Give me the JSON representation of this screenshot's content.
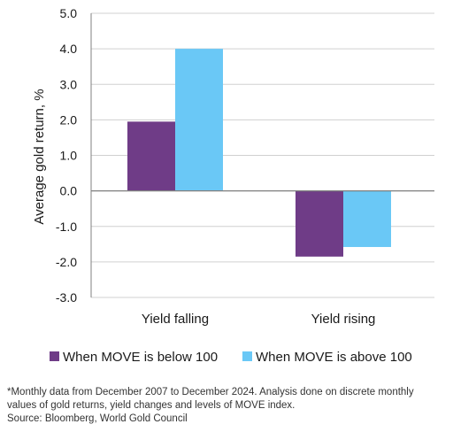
{
  "chart_data": {
    "type": "bar",
    "title": "",
    "xlabel": "",
    "ylabel": "Average gold return, %",
    "ylim": [
      -3.0,
      5.0
    ],
    "yticks": [
      "5.0",
      "4.0",
      "3.0",
      "2.0",
      "1.0",
      "0.0",
      "-1.0",
      "-2.0",
      "-3.0"
    ],
    "categories": [
      "Yield falling",
      "Yield rising"
    ],
    "series": [
      {
        "name": "When MOVE is below 100",
        "values": [
          1.95,
          -1.85
        ],
        "color": "#6f3c87"
      },
      {
        "name": "When MOVE is above 100",
        "values": [
          4.0,
          -1.58
        ],
        "color": "#6ac8f6"
      }
    ],
    "grid": true,
    "legend_placement": "bottom"
  },
  "footnote": {
    "line1": "*Monthly data from December 2007 to December 2024. Analysis done on discrete monthly",
    "line2": "values of gold returns, yield changes and levels of MOVE index.",
    "source": "Source: Bloomberg, World Gold Council"
  }
}
